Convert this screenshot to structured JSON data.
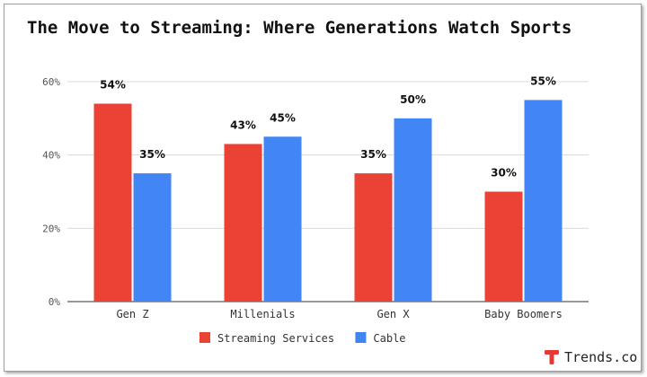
{
  "chart_data": {
    "type": "bar",
    "title": "The Move to Streaming: Where Generations Watch Sports",
    "xlabel": "",
    "ylabel": "",
    "categories": [
      "Gen Z",
      "Millenials",
      "Gen X",
      "Baby Boomers"
    ],
    "series": [
      {
        "name": "Streaming Services",
        "values": [
          54,
          43,
          35,
          30
        ],
        "color": "#ea4335",
        "labels": [
          "54%",
          "43%",
          "35%",
          "30%"
        ]
      },
      {
        "name": "Cable",
        "values": [
          35,
          45,
          50,
          55
        ],
        "color": "#4285f4",
        "labels": [
          "35%",
          "45%",
          "50%",
          "55%"
        ]
      }
    ],
    "ylim": [
      0,
      60
    ],
    "yticks": [
      0,
      20,
      40,
      60
    ],
    "ytick_labels": [
      "0%",
      "20%",
      "40%",
      "60%"
    ],
    "grid": true,
    "legend": "bottom"
  },
  "branding": {
    "name": "Trends.co",
    "icon": "t-logo-icon",
    "color": "#e53935"
  }
}
